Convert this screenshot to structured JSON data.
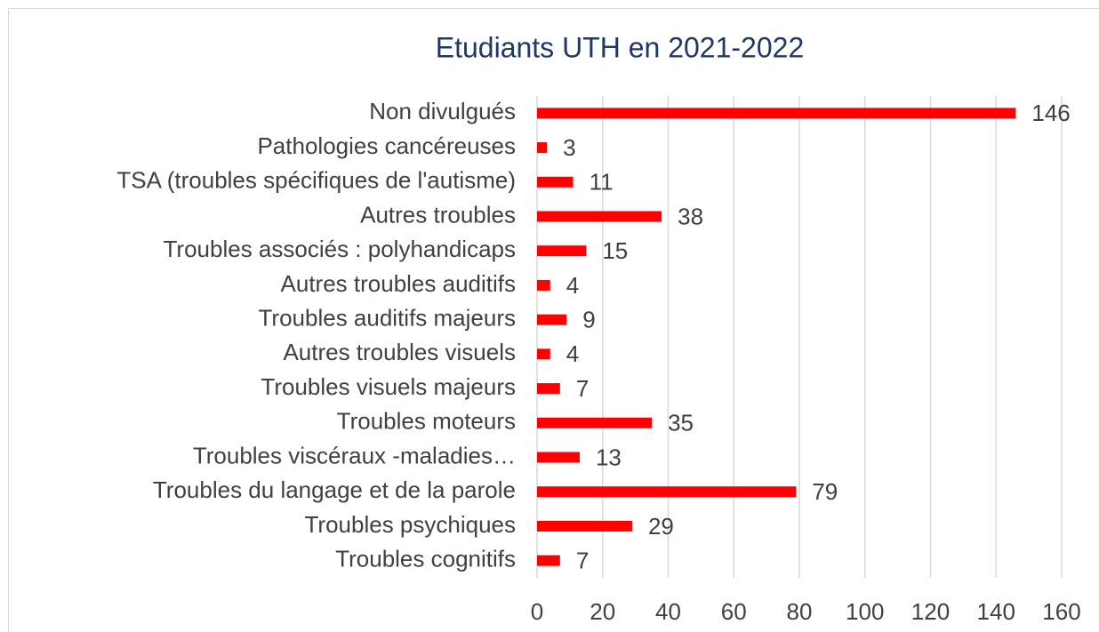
{
  "chart_data": {
    "type": "bar",
    "orientation": "horizontal",
    "title": "Etudiants UTH en 2021-2022",
    "categories": [
      "Non divulgués",
      "Pathologies cancéreuses",
      "TSA (troubles spécifiques de l'autisme)",
      "Autres troubles",
      "Troubles associés : polyhandicaps",
      "Autres troubles auditifs",
      "Troubles auditifs majeurs",
      "Autres troubles visuels",
      "Troubles visuels majeurs",
      "Troubles moteurs",
      "Troubles viscéraux -maladies…",
      "Troubles du langage et de la parole",
      "Troubles psychiques",
      "Troubles cognitifs"
    ],
    "values": [
      146,
      3,
      11,
      38,
      15,
      4,
      9,
      4,
      7,
      35,
      13,
      79,
      29,
      7
    ],
    "color": "#ff0000",
    "xlim": [
      0,
      160
    ],
    "xticks": [
      0,
      20,
      40,
      60,
      80,
      100,
      120,
      140,
      160
    ],
    "grid": true
  }
}
